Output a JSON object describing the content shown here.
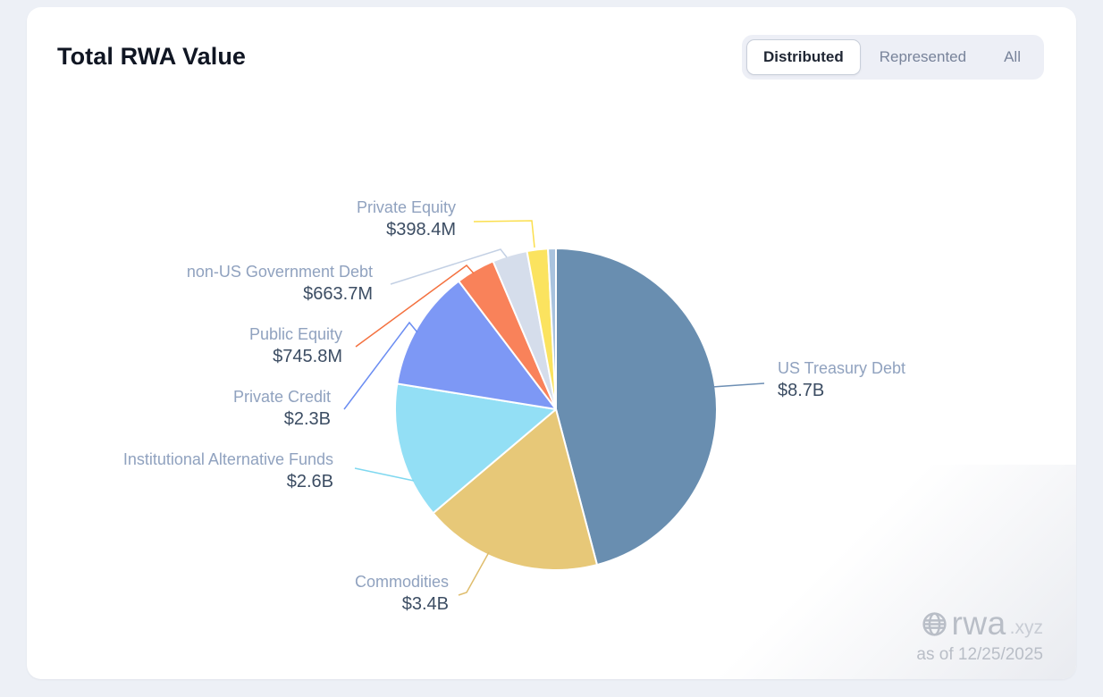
{
  "card": {
    "title": "Total RWA Value",
    "toggle": {
      "options": [
        "Distributed",
        "Represented",
        "All"
      ],
      "active": "Distributed"
    },
    "watermark": {
      "brand": "rwa",
      "brand_suffix": ".xyz",
      "as_of": "as of 12/25/2025"
    }
  },
  "chart_data": {
    "type": "pie",
    "title": "Total RWA Value",
    "unit": "USD",
    "start_angle": "12 o'clock, clockwise, slices in listed order",
    "legend_position": "callout-labels",
    "slices": [
      {
        "label": "US Treasury Debt",
        "display": "$8.7B",
        "value_musd": 8700,
        "color": "#698eb0"
      },
      {
        "label": "Commodities",
        "display": "$3.4B",
        "value_musd": 3400,
        "color": "#e7c878"
      },
      {
        "label": "Institutional Alternative Funds",
        "display": "$2.6B",
        "value_musd": 2600,
        "color": "#93dff5"
      },
      {
        "label": "Private Credit",
        "display": "$2.3B",
        "value_musd": 2300,
        "color": "#7d98f5"
      },
      {
        "label": "Public Equity",
        "display": "$745.8M",
        "value_musd": 745.8,
        "color": "#f9825a"
      },
      {
        "label": "non-US Government Debt",
        "display": "$663.7M",
        "value_musd": 663.7,
        "color": "#d5ddeb"
      },
      {
        "label": "Private Equity",
        "display": "$398.4M",
        "value_musd": 398.4,
        "color": "#fbe35f"
      },
      {
        "label": "",
        "display": "",
        "value_musd": 150,
        "color": "#a9c3de",
        "note": "unlabeled thin slice, value estimated from arc length"
      }
    ]
  }
}
